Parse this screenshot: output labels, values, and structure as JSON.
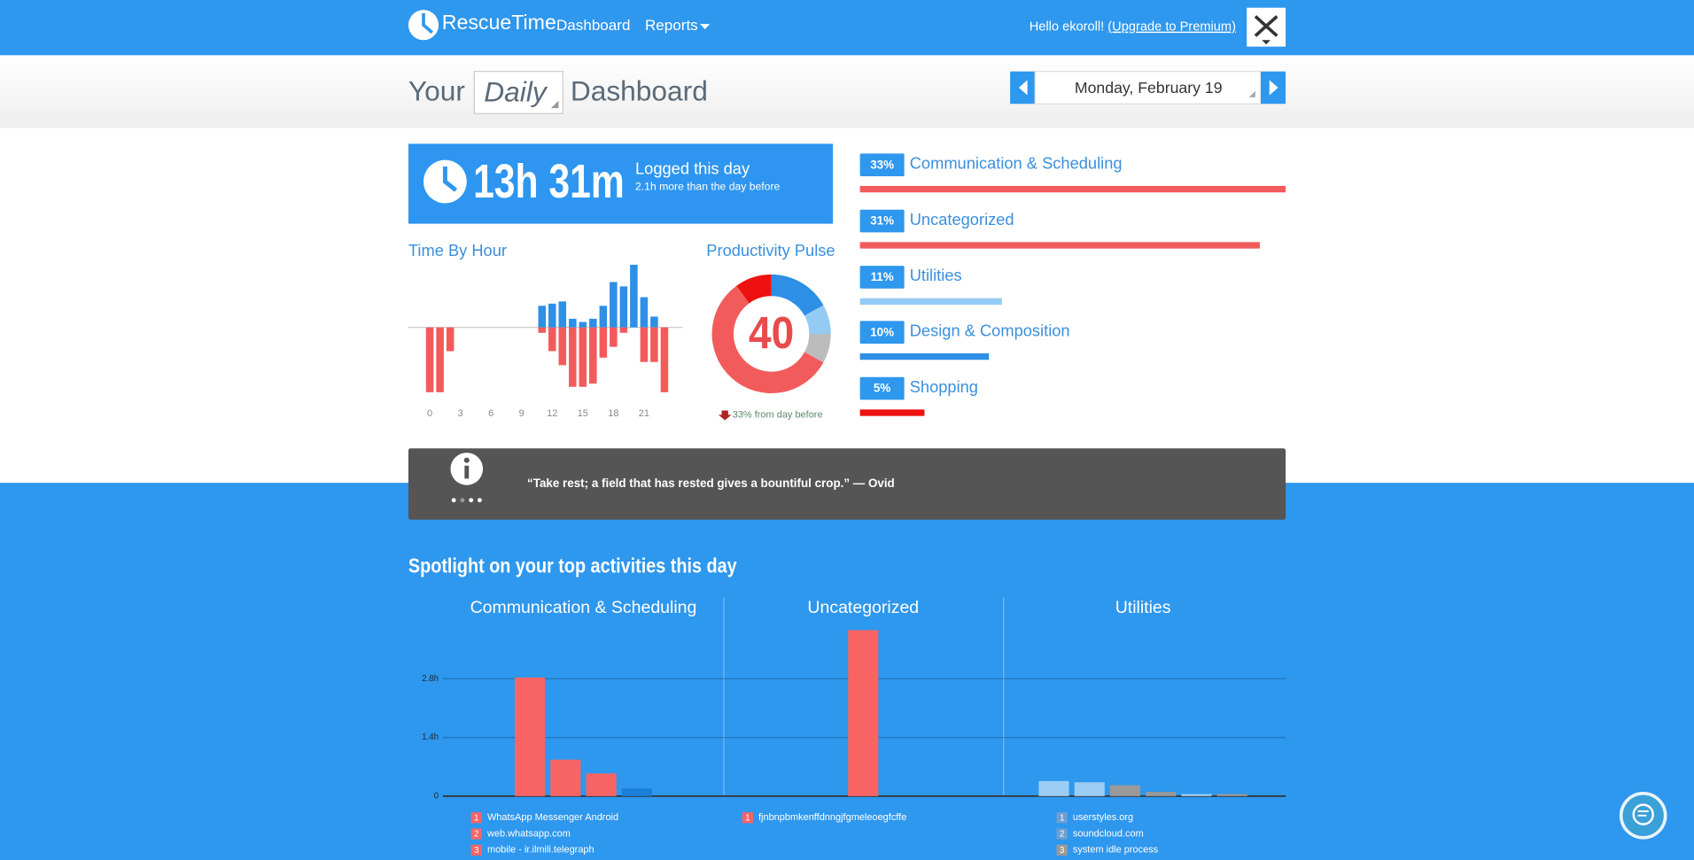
{
  "topbar": {
    "brand": "RescueTime",
    "nav": [
      "Dashboard",
      "Reports"
    ],
    "greeting": "Hello ekoroll! ",
    "upgrade": "(Upgrade to Premium)"
  },
  "header": {
    "your": "Your",
    "period": "Daily",
    "dashboard": "Dashboard",
    "date": "Monday, February 19"
  },
  "summary": {
    "total": "13h 31m",
    "label": "Logged this day",
    "note": "2.1h more than the day before"
  },
  "time_by_hour": {
    "type": "bar",
    "title": "Time By Hour",
    "x": [
      0,
      1,
      2,
      3,
      4,
      5,
      6,
      7,
      8,
      9,
      10,
      11,
      12,
      13,
      14,
      15,
      16,
      17,
      18,
      19,
      20,
      21,
      22,
      23
    ],
    "xlim": [
      -2.1,
      24.8
    ],
    "xticks": [
      0,
      3,
      6,
      9,
      12,
      15,
      18,
      21
    ],
    "ylim": [
      -60,
      60
    ],
    "series": [
      {
        "color": "#2d8fe6",
        "values": [
          0,
          0,
          0,
          0,
          0,
          0,
          0,
          0,
          0,
          0,
          0,
          20,
          22,
          24,
          8,
          5,
          8,
          20,
          42,
          38,
          58,
          28,
          10,
          0
        ]
      },
      {
        "color": "#f25b5b",
        "values": [
          -60,
          -60,
          -22,
          0,
          0,
          0,
          0,
          0,
          0,
          0,
          0,
          -5,
          -22,
          -35,
          -55,
          -55,
          -52,
          -28,
          -18,
          -5,
          0,
          -32,
          -32,
          -60
        ]
      }
    ]
  },
  "pulse": {
    "type": "pie",
    "title": "Productivity Pulse",
    "score": "40",
    "values": [
      17,
      8,
      8,
      57,
      10
    ],
    "colors": [
      "#2d8fe6",
      "#94cbf4",
      "#bcbcbc",
      "#f25b5b",
      "#ee1111"
    ],
    "note": "33% from day before"
  },
  "categories": {
    "type": "bar",
    "categories": [
      "Communication & Scheduling",
      "Uncategorized",
      "Utilities",
      "Design & Composition",
      "Shopping"
    ],
    "values": [
      33,
      31,
      11,
      10,
      5
    ],
    "value_labels": [
      "33%",
      "31%",
      "11%",
      "10%",
      "5%"
    ],
    "colors": [
      "#f25b5b",
      "#f25b5b",
      "#94cbf4",
      "#2d8fe6",
      "#ee1111"
    ],
    "xlim": [
      0,
      33
    ]
  },
  "quote": "“Take rest; a field that has rested gives a bountiful crop.” — Ovid",
  "spotlight": {
    "title": "Spotlight on your top activities this day",
    "ylim": [
      0,
      4.2
    ],
    "yticks": [
      {
        "value": 0,
        "label": "0"
      },
      {
        "value": 1.4,
        "label": "1.4h"
      },
      {
        "value": 2.8,
        "label": "2.8h"
      }
    ],
    "panels": [
      {
        "type": "bar",
        "title": "Communication & Scheduling",
        "values": [
          2.83,
          0.87,
          0.54,
          0.18
        ],
        "colors": [
          "#f86464",
          "#f86464",
          "#f86464",
          "#1a7fd6"
        ],
        "legend": [
          {
            "rank": 1,
            "name": "WhatsApp Messenger Android",
            "color": "#f86464"
          },
          {
            "rank": 2,
            "name": "web.whatsapp.com",
            "color": "#f86464"
          },
          {
            "rank": 3,
            "name": "mobile - ir.ilmili.telegraph",
            "color": "#f86464"
          }
        ]
      },
      {
        "type": "bar",
        "title": "Uncategorized",
        "values": [
          3.96
        ],
        "colors": [
          "#f86464"
        ],
        "legend": [
          {
            "rank": 1,
            "name": "fjnbnpbmkenffdnngjfgmeleoegfcffe",
            "color": "#f86464"
          }
        ]
      },
      {
        "type": "bar",
        "title": "Utilities",
        "values": [
          0.36,
          0.33,
          0.26,
          0.1,
          0.05,
          0.05
        ],
        "colors": [
          "#9ccdf5",
          "#9ccdf5",
          "#9a9a9a",
          "#9a9a9a",
          "#9ccdf5",
          "#9a9a9a"
        ],
        "legend": [
          {
            "rank": 1,
            "name": "userstyles.org",
            "color": "#6f9fd0"
          },
          {
            "rank": 2,
            "name": "soundcloud.com",
            "color": "#6f9fd0"
          },
          {
            "rank": 3,
            "name": "system idle process",
            "color": "#9a9a9a"
          }
        ]
      }
    ]
  }
}
